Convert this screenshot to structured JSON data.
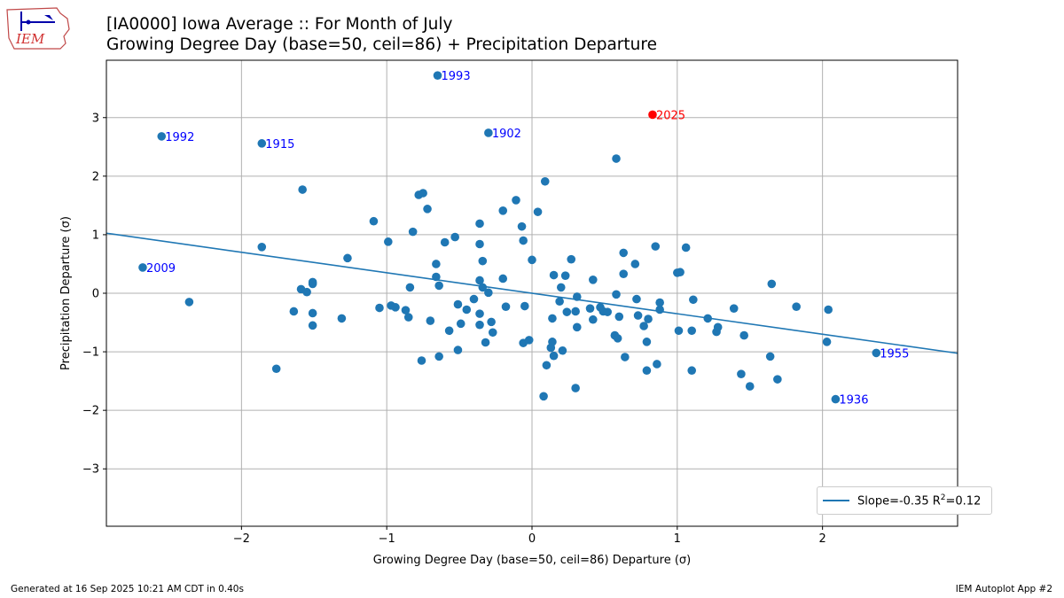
{
  "logo": {
    "text": "IEM"
  },
  "title": {
    "line1": "[IA0000] Iowa Average :: For Month of July",
    "line2": "Growing Degree Day (base=50, ceil=86) + Precipitation Departure"
  },
  "footer": {
    "left": "Generated at 16 Sep 2025 10:21 AM CDT in 0.40s",
    "right": "IEM Autoplot App #2"
  },
  "legend": {
    "slope_text": "Slope=-0.35 R",
    "r2_sup": "2",
    "r2_value": "=0.12"
  },
  "colors": {
    "point": "#1f77b4",
    "highlight": "#ff0000",
    "label": "#0000ff",
    "grid": "#b0b0b0",
    "fit": "#1f77b4"
  },
  "chart_data": {
    "type": "scatter",
    "xlabel": "Growing Degree Day (base=50, ceil=86) Departure (σ)",
    "ylabel": "Precipitation Departure (σ)",
    "xlim": [
      -2.93,
      2.93
    ],
    "ylim": [
      -3.98,
      3.98
    ],
    "xticks": [
      -2,
      -1,
      0,
      1,
      2
    ],
    "yticks": [
      -3,
      -2,
      -1,
      0,
      1,
      2,
      3
    ],
    "xtick_labels": [
      "−2",
      "−1",
      "0",
      "1",
      "2"
    ],
    "ytick_labels": [
      "−3",
      "−2",
      "−1",
      "0",
      "1",
      "2",
      "3"
    ],
    "grid": true,
    "fit": {
      "slope": -0.35,
      "intercept": 0.0,
      "r2": 0.12
    },
    "labeled_points": [
      {
        "year": "1993",
        "x": -0.65,
        "y": 3.72,
        "highlight": false
      },
      {
        "year": "2025",
        "x": 0.83,
        "y": 3.05,
        "highlight": true
      },
      {
        "year": "1992",
        "x": -2.55,
        "y": 2.68,
        "highlight": false
      },
      {
        "year": "1915",
        "x": -1.86,
        "y": 2.56,
        "highlight": false
      },
      {
        "year": "1902",
        "x": -0.3,
        "y": 2.74,
        "highlight": false
      },
      {
        "year": "2009",
        "x": -2.68,
        "y": 0.44,
        "highlight": false
      },
      {
        "year": "1955",
        "x": 2.37,
        "y": -1.02,
        "highlight": false
      },
      {
        "year": "1936",
        "x": 2.09,
        "y": -1.81,
        "highlight": false
      }
    ],
    "points": [
      [
        0.58,
        2.3
      ],
      [
        -1.58,
        1.77
      ],
      [
        0.09,
        1.91
      ],
      [
        -0.78,
        1.68
      ],
      [
        -0.75,
        1.71
      ],
      [
        -0.72,
        1.44
      ],
      [
        -1.09,
        1.23
      ],
      [
        -0.36,
        1.19
      ],
      [
        -0.2,
        1.41
      ],
      [
        -0.11,
        1.59
      ],
      [
        -0.07,
        1.14
      ],
      [
        0.04,
        1.39
      ],
      [
        -0.82,
        1.05
      ],
      [
        -0.99,
        0.88
      ],
      [
        -0.6,
        0.87
      ],
      [
        -0.53,
        0.96
      ],
      [
        -0.36,
        0.84
      ],
      [
        -0.06,
        0.9
      ],
      [
        -1.86,
        0.79
      ],
      [
        -1.27,
        0.6
      ],
      [
        -0.66,
        0.5
      ],
      [
        -0.34,
        0.55
      ],
      [
        0.0,
        0.57
      ],
      [
        0.15,
        0.31
      ],
      [
        0.23,
        0.3
      ],
      [
        0.27,
        0.58
      ],
      [
        0.63,
        0.69
      ],
      [
        0.71,
        0.5
      ],
      [
        0.85,
        0.8
      ],
      [
        1.06,
        0.78
      ],
      [
        1.0,
        0.35
      ],
      [
        1.02,
        0.36
      ],
      [
        0.63,
        0.33
      ],
      [
        0.42,
        0.23
      ],
      [
        -1.51,
        0.19
      ],
      [
        -1.51,
        0.16
      ],
      [
        -1.59,
        0.07
      ],
      [
        -1.55,
        0.02
      ],
      [
        -0.84,
        0.1
      ],
      [
        -0.64,
        0.13
      ],
      [
        -0.66,
        0.28
      ],
      [
        -0.36,
        0.22
      ],
      [
        -0.34,
        0.1
      ],
      [
        -0.3,
        0.01
      ],
      [
        -0.2,
        0.25
      ],
      [
        0.2,
        0.1
      ],
      [
        0.31,
        -0.06
      ],
      [
        0.58,
        -0.02
      ],
      [
        1.65,
        0.16
      ],
      [
        -2.36,
        -0.15
      ],
      [
        -1.64,
        -0.31
      ],
      [
        -1.51,
        -0.34
      ],
      [
        -1.31,
        -0.43
      ],
      [
        -1.05,
        -0.25
      ],
      [
        -0.97,
        -0.21
      ],
      [
        -0.94,
        -0.24
      ],
      [
        -0.87,
        -0.29
      ],
      [
        -0.85,
        -0.41
      ],
      [
        -0.7,
        -0.47
      ],
      [
        -0.51,
        -0.19
      ],
      [
        -0.45,
        -0.28
      ],
      [
        -0.4,
        -0.1
      ],
      [
        -0.36,
        -0.35
      ],
      [
        -0.28,
        -0.49
      ],
      [
        -0.18,
        -0.23
      ],
      [
        -0.05,
        -0.22
      ],
      [
        0.14,
        -0.43
      ],
      [
        0.19,
        -0.14
      ],
      [
        0.24,
        -0.32
      ],
      [
        0.3,
        -0.31
      ],
      [
        0.4,
        -0.26
      ],
      [
        0.42,
        -0.45
      ],
      [
        0.47,
        -0.24
      ],
      [
        0.49,
        -0.31
      ],
      [
        0.52,
        -0.32
      ],
      [
        0.6,
        -0.4
      ],
      [
        0.72,
        -0.1
      ],
      [
        0.73,
        -0.38
      ],
      [
        0.77,
        -0.56
      ],
      [
        0.8,
        -0.44
      ],
      [
        0.88,
        -0.16
      ],
      [
        0.88,
        -0.28
      ],
      [
        1.11,
        -0.11
      ],
      [
        1.21,
        -0.43
      ],
      [
        1.39,
        -0.26
      ],
      [
        1.82,
        -0.23
      ],
      [
        2.04,
        -0.28
      ],
      [
        -1.51,
        -0.55
      ],
      [
        -0.57,
        -0.64
      ],
      [
        -0.49,
        -0.52
      ],
      [
        -0.36,
        -0.54
      ],
      [
        -0.27,
        -0.67
      ],
      [
        -0.32,
        -0.84
      ],
      [
        -0.06,
        -0.85
      ],
      [
        -0.02,
        -0.8
      ],
      [
        0.13,
        -0.93
      ],
      [
        0.14,
        -0.83
      ],
      [
        0.15,
        -1.07
      ],
      [
        0.21,
        -0.98
      ],
      [
        0.31,
        -0.58
      ],
      [
        0.57,
        -0.72
      ],
      [
        0.59,
        -0.77
      ],
      [
        0.79,
        -0.83
      ],
      [
        1.01,
        -0.64
      ],
      [
        1.1,
        -0.64
      ],
      [
        1.27,
        -0.66
      ],
      [
        1.28,
        -0.58
      ],
      [
        1.46,
        -0.72
      ],
      [
        2.03,
        -0.83
      ],
      [
        -1.76,
        -1.29
      ],
      [
        -0.76,
        -1.15
      ],
      [
        -0.64,
        -1.08
      ],
      [
        -0.51,
        -0.97
      ],
      [
        0.1,
        -1.23
      ],
      [
        0.08,
        -1.76
      ],
      [
        0.3,
        -1.62
      ],
      [
        0.64,
        -1.09
      ],
      [
        0.79,
        -1.32
      ],
      [
        0.86,
        -1.21
      ],
      [
        1.1,
        -1.32
      ],
      [
        1.44,
        -1.38
      ],
      [
        1.5,
        -1.59
      ],
      [
        1.64,
        -1.08
      ],
      [
        1.69,
        -1.47
      ]
    ]
  }
}
